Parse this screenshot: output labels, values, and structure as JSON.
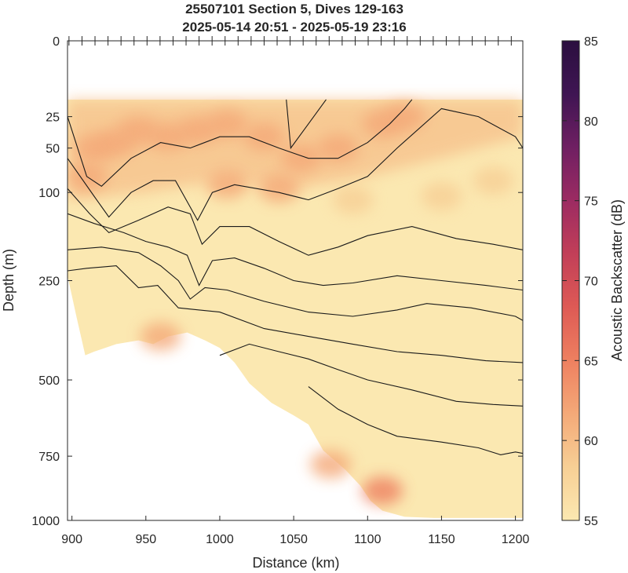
{
  "chart_data": {
    "type": "heatmap",
    "title": "25507101 Section 5, Dives 129-163",
    "subtitle": "2025-05-14 20:51 - 2025-05-19 23:16",
    "xlabel": "Distance (km)",
    "ylabel": "Depth (m)",
    "xlim": [
      897,
      1205
    ],
    "ylim": [
      0,
      1000
    ],
    "y_scale": "sqrt",
    "x_ticks": [
      "900",
      "950",
      "1000",
      "1050",
      "1100",
      "1150",
      "1200"
    ],
    "x_tick_values": [
      900,
      950,
      1000,
      1050,
      1100,
      1150,
      1200
    ],
    "y_ticks": [
      "0",
      "25",
      "50",
      "100",
      "250",
      "500",
      "750",
      "1000"
    ],
    "y_tick_values": [
      0,
      25,
      50,
      100,
      250,
      500,
      750,
      1000
    ],
    "colorbar": {
      "label": "Acoustic Backscatter (dB)",
      "range": [
        55,
        85
      ],
      "ticks": [
        "55",
        "60",
        "65",
        "70",
        "75",
        "80",
        "85"
      ],
      "tick_values": [
        55,
        60,
        65,
        70,
        75,
        80,
        85
      ],
      "colors": [
        "#fbe8b1",
        "#f7cf95",
        "#f4a978",
        "#ee8060",
        "#de5a55",
        "#c23f58",
        "#9c2b62",
        "#6f1f62",
        "#3f1553",
        "#2b0f3f"
      ]
    },
    "bottom_profile_km_m": [
      [
        897,
        240
      ],
      [
        903,
        330
      ],
      [
        909,
        430
      ],
      [
        915,
        420
      ],
      [
        930,
        400
      ],
      [
        945,
        390
      ],
      [
        955,
        400
      ],
      [
        965,
        380
      ],
      [
        978,
        370
      ],
      [
        990,
        390
      ],
      [
        1000,
        410
      ],
      [
        1010,
        450
      ],
      [
        1020,
        510
      ],
      [
        1035,
        570
      ],
      [
        1050,
        610
      ],
      [
        1060,
        640
      ],
      [
        1070,
        730
      ],
      [
        1085,
        800
      ],
      [
        1095,
        860
      ],
      [
        1102,
        920
      ],
      [
        1110,
        960
      ],
      [
        1125,
        985
      ],
      [
        1145,
        990
      ],
      [
        1175,
        990
      ],
      [
        1205,
        990
      ]
    ],
    "contour_lines_km_m": [
      [
        [
          1045,
          15
        ],
        [
          1048,
          50
        ],
        [
          1060,
          30
        ],
        [
          1072,
          15
        ]
      ],
      [
        [
          897,
          25
        ],
        [
          910,
          80
        ],
        [
          920,
          92
        ],
        [
          940,
          60
        ],
        [
          960,
          45
        ],
        [
          980,
          50
        ],
        [
          1000,
          40
        ],
        [
          1020,
          40
        ],
        [
          1040,
          50
        ],
        [
          1060,
          60
        ],
        [
          1080,
          60
        ],
        [
          1100,
          45
        ],
        [
          1115,
          30
        ],
        [
          1125,
          20
        ],
        [
          1130,
          15
        ]
      ],
      [
        [
          897,
          60
        ],
        [
          915,
          105
        ],
        [
          925,
          135
        ],
        [
          940,
          100
        ],
        [
          955,
          85
        ],
        [
          970,
          85
        ],
        [
          985,
          140
        ],
        [
          995,
          100
        ],
        [
          1010,
          90
        ],
        [
          1040,
          100
        ],
        [
          1060,
          110
        ],
        [
          1080,
          95
        ],
        [
          1100,
          80
        ],
        [
          1120,
          50
        ],
        [
          1150,
          20
        ],
        [
          1175,
          25
        ],
        [
          1200,
          40
        ],
        [
          1205,
          50
        ]
      ],
      [
        [
          897,
          95
        ],
        [
          912,
          130
        ],
        [
          925,
          160
        ],
        [
          945,
          140
        ],
        [
          965,
          120
        ],
        [
          980,
          130
        ],
        [
          988,
          180
        ],
        [
          1000,
          150
        ],
        [
          1020,
          150
        ],
        [
          1040,
          175
        ],
        [
          1060,
          200
        ],
        [
          1080,
          185
        ],
        [
          1100,
          165
        ],
        [
          1130,
          150
        ],
        [
          1160,
          170
        ],
        [
          1185,
          180
        ],
        [
          1205,
          190
        ]
      ],
      [
        [
          897,
          130
        ],
        [
          915,
          145
        ],
        [
          935,
          160
        ],
        [
          950,
          175
        ],
        [
          965,
          185
        ],
        [
          978,
          200
        ],
        [
          986,
          260
        ],
        [
          995,
          210
        ],
        [
          1010,
          205
        ],
        [
          1030,
          225
        ],
        [
          1050,
          250
        ],
        [
          1070,
          260
        ],
        [
          1090,
          255
        ],
        [
          1120,
          240
        ],
        [
          1150,
          250
        ],
        [
          1180,
          260
        ],
        [
          1205,
          270
        ]
      ],
      [
        [
          897,
          190
        ],
        [
          920,
          185
        ],
        [
          945,
          195
        ],
        [
          960,
          220
        ],
        [
          972,
          250
        ],
        [
          980,
          290
        ],
        [
          990,
          265
        ],
        [
          1005,
          270
        ],
        [
          1030,
          295
        ],
        [
          1060,
          320
        ],
        [
          1090,
          330
        ],
        [
          1120,
          315
        ],
        [
          1140,
          300
        ],
        [
          1170,
          310
        ],
        [
          1200,
          330
        ],
        [
          1205,
          340
        ]
      ],
      [
        [
          897,
          230
        ],
        [
          910,
          225
        ],
        [
          930,
          220
        ],
        [
          945,
          265
        ],
        [
          958,
          260
        ],
        [
          972,
          310
        ],
        [
          1000,
          320
        ],
        [
          1030,
          360
        ],
        [
          1060,
          380
        ],
        [
          1090,
          400
        ],
        [
          1120,
          420
        ],
        [
          1150,
          430
        ],
        [
          1180,
          445
        ],
        [
          1205,
          450
        ]
      ],
      [
        [
          1000,
          430
        ],
        [
          1020,
          400
        ],
        [
          1040,
          420
        ],
        [
          1060,
          440
        ],
        [
          1080,
          470
        ],
        [
          1100,
          500
        ],
        [
          1130,
          530
        ],
        [
          1160,
          565
        ],
        [
          1185,
          575
        ],
        [
          1205,
          580
        ]
      ],
      [
        [
          1060,
          520
        ],
        [
          1080,
          590
        ],
        [
          1100,
          640
        ],
        [
          1120,
          680
        ],
        [
          1150,
          700
        ],
        [
          1175,
          720
        ],
        [
          1190,
          745
        ],
        [
          1200,
          735
        ],
        [
          1205,
          740
        ]
      ]
    ],
    "backscatter_patches_km_m_db": [
      [
        915,
        50,
        63
      ],
      [
        930,
        45,
        63
      ],
      [
        945,
        35,
        62
      ],
      [
        965,
        40,
        61
      ],
      [
        985,
        35,
        62
      ],
      [
        1005,
        30,
        62
      ],
      [
        1030,
        40,
        62
      ],
      [
        1055,
        60,
        61
      ],
      [
        1080,
        50,
        61
      ],
      [
        1110,
        30,
        60
      ],
      [
        1125,
        25,
        61
      ],
      [
        1005,
        90,
        61
      ],
      [
        1040,
        95,
        60
      ],
      [
        1090,
        110,
        59
      ],
      [
        1150,
        105,
        59
      ],
      [
        1185,
        85,
        58
      ],
      [
        910,
        80,
        60
      ],
      [
        960,
        380,
        62
      ],
      [
        1110,
        880,
        64
      ],
      [
        1075,
        780,
        61
      ]
    ]
  }
}
